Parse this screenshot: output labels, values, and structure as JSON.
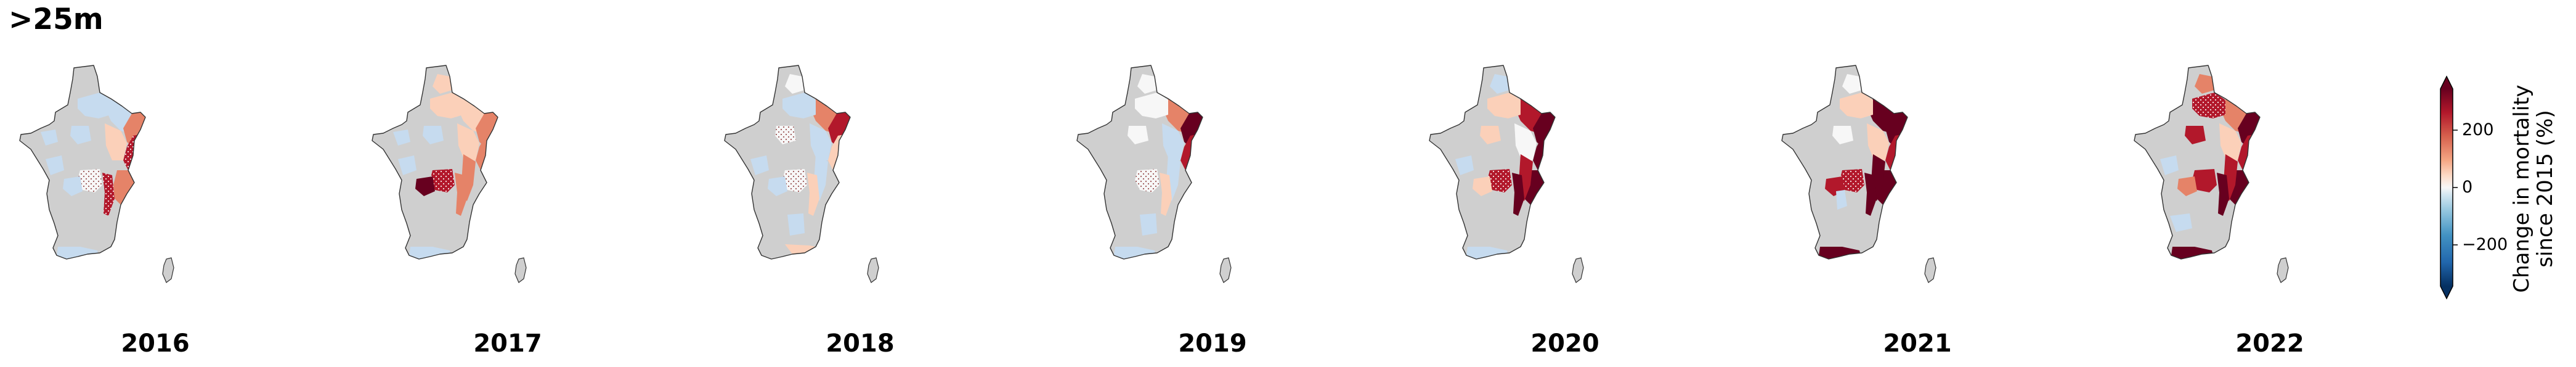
{
  "figure": {
    "title": ">25m"
  },
  "panels": [
    {
      "year": "2016"
    },
    {
      "year": "2017"
    },
    {
      "year": "2018"
    },
    {
      "year": "2019"
    },
    {
      "year": "2020"
    },
    {
      "year": "2021"
    },
    {
      "year": "2022"
    }
  ],
  "colorbar": {
    "label_line1": "Change in mortality",
    "label_line2": "since 2015 (%)",
    "ticks": [
      "200",
      "0",
      "−200"
    ],
    "tick_values": [
      200,
      0,
      -200
    ],
    "range": [
      -320,
      320
    ],
    "extend": "both",
    "colormap": "RdBu_r"
  },
  "colors": {
    "no_data": "#cfcfcf",
    "outline": "#333333",
    "negative_strong": "#053061",
    "negative_mid": "#6aa6cf",
    "negative_light": "#c6dbef",
    "neutral": "#f7f7f7",
    "positive_light": "#fbd0b9",
    "positive_mid": "#e58368",
    "positive_strong": "#b2182b",
    "positive_extreme": "#67001f"
  }
}
